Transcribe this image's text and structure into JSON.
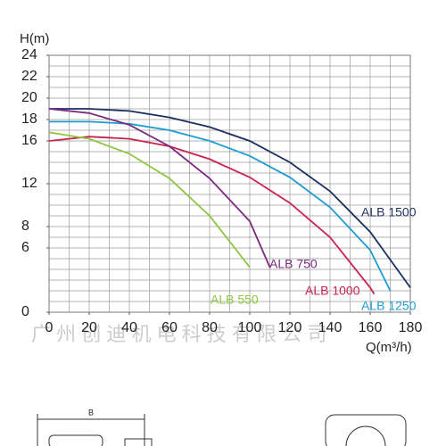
{
  "chart_data": {
    "type": "line",
    "y_label": "H(m)",
    "x_label": "Q(m³/h)",
    "watermark": "广 州 创 迪 机 电 科 技 有 限 公 司",
    "drawing_label": "B",
    "xlim": [
      0,
      180
    ],
    "xticks": [
      0,
      20,
      40,
      60,
      80,
      100,
      120,
      140,
      160,
      180
    ],
    "ylim": [
      0,
      24
    ],
    "yticks": [
      0,
      6,
      8,
      12,
      16,
      18,
      20,
      22,
      24
    ],
    "grid": true,
    "series": [
      {
        "name": "ALB 1500",
        "color": "#1c2f5e",
        "x": [
          0,
          20,
          40,
          60,
          80,
          100,
          120,
          140,
          160,
          180
        ],
        "values": [
          19,
          19,
          18.8,
          18.2,
          17.3,
          16,
          14,
          11.3,
          7.5,
          2.3
        ]
      },
      {
        "name": "ALB 1250",
        "color": "#1f9bd2",
        "x": [
          0,
          20,
          40,
          60,
          80,
          100,
          120,
          140,
          160,
          170
        ],
        "values": [
          17.8,
          17.8,
          17.6,
          17,
          16,
          14.6,
          12.6,
          9.8,
          5.8,
          2
        ]
      },
      {
        "name": "ALB 1000",
        "color": "#c8234e",
        "x": [
          0,
          20,
          40,
          60,
          80,
          100,
          120,
          140,
          160,
          162
        ],
        "values": [
          16,
          16.4,
          16.2,
          15.5,
          14.3,
          12.6,
          10.2,
          7,
          2.3,
          1.7
        ]
      },
      {
        "name": "ALB 750",
        "color": "#7b2a7f",
        "x": [
          0,
          20,
          40,
          60,
          80,
          100,
          110
        ],
        "values": [
          19,
          18.6,
          17.5,
          15.5,
          12.5,
          8.5,
          4.2
        ]
      },
      {
        "name": "ALB 550",
        "color": "#8dc63f",
        "x": [
          0,
          20,
          40,
          60,
          80,
          100
        ],
        "values": [
          16.8,
          16.2,
          14.8,
          12.5,
          9,
          4.2
        ]
      }
    ]
  }
}
